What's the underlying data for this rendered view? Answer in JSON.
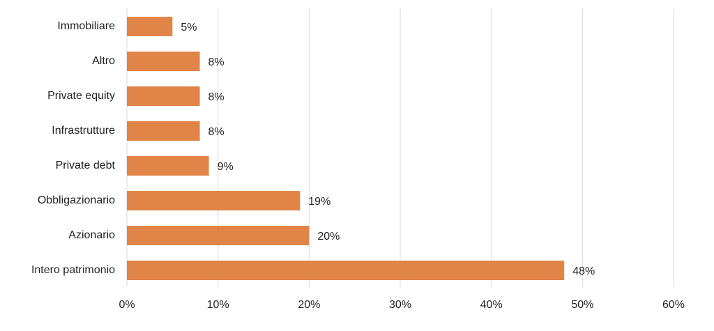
{
  "chart_data": {
    "type": "bar",
    "orientation": "horizontal",
    "categories": [
      "Immobiliare",
      "Altro",
      "Private equity",
      "Infrastrutture",
      "Private debt",
      "Obbligazionario",
      "Azionario",
      "Intero patrimonio"
    ],
    "values": [
      5,
      8,
      8,
      8,
      9,
      19,
      20,
      48
    ],
    "value_labels": [
      "5%",
      "8%",
      "8%",
      "8%",
      "9%",
      "19%",
      "20%",
      "48%"
    ],
    "color": "#e08447",
    "xlim": [
      0,
      60
    ],
    "xticks": [
      {
        "value": 0,
        "label": "0%"
      },
      {
        "value": 10,
        "label": "10%"
      },
      {
        "value": 20,
        "label": "20%"
      },
      {
        "value": 30,
        "label": "30%"
      },
      {
        "value": 40,
        "label": "40%"
      },
      {
        "value": 50,
        "label": "50%"
      },
      {
        "value": 60,
        "label": "60%"
      }
    ],
    "grid": true
  }
}
